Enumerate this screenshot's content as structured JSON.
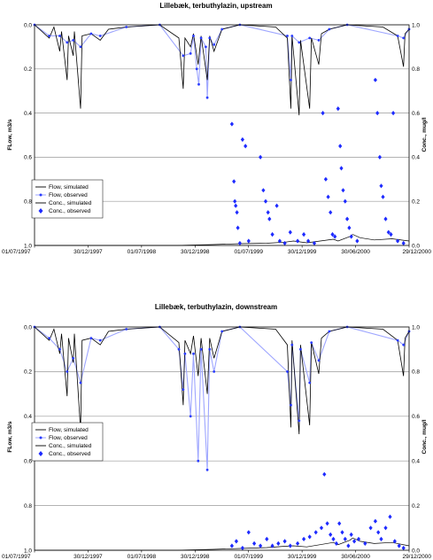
{
  "chart_data": [
    {
      "type": "line",
      "title": "Lillebæk, terbuthylazin, upstream",
      "ylabel_left": "FLow, m3/s",
      "ylabel_right": "Conc., mug/l",
      "left_axis": {
        "range": [
          0.0,
          1.0
        ],
        "inverted": true,
        "ticks": [
          "0.0",
          "0.2",
          "0.4",
          "0.6",
          "0.8",
          "1.0"
        ]
      },
      "right_axis": {
        "range": [
          0.0,
          1.0
        ],
        "ticks": [
          "1.0",
          "0.8",
          "0.6",
          "0.4",
          "0.2",
          "0.0"
        ]
      },
      "x_axis": {
        "start": "1997-07-01",
        "end": "2000-12-29",
        "tick_labels": [
          "01/07/1997",
          "30/12/1997",
          "01/07/1998",
          "30/12/1998",
          "01/07/1999",
          "30/12/1999",
          "30/06/2000",
          "29/12/2000"
        ]
      },
      "grid": "horizontal",
      "legend_position": "bottom-left",
      "legend": [
        "Flow, simulated",
        "Flow, observed",
        "Conc., simulated",
        "Conc., observed"
      ],
      "flow_simulated": [
        [
          "1997-07-01",
          0.0
        ],
        [
          "1997-08-20",
          0.06
        ],
        [
          "1997-09-05",
          0.01
        ],
        [
          "1997-09-25",
          0.12
        ],
        [
          "1997-10-01",
          0.03
        ],
        [
          "1997-10-20",
          0.25
        ],
        [
          "1997-10-25",
          0.05
        ],
        [
          "1997-11-10",
          0.14
        ],
        [
          "1997-11-14",
          0.03
        ],
        [
          "1997-12-05",
          0.38
        ],
        [
          "1997-12-10",
          0.05
        ],
        [
          "1998-01-10",
          0.04
        ],
        [
          "1998-02-10",
          0.07
        ],
        [
          "1998-03-10",
          0.02
        ],
        [
          "1998-05-10",
          0.01
        ],
        [
          "1998-09-01",
          0.0
        ],
        [
          "1998-11-05",
          0.06
        ],
        [
          "1998-11-20",
          0.29
        ],
        [
          "1998-11-26",
          0.06
        ],
        [
          "1998-12-15",
          0.1
        ],
        [
          "1998-12-25",
          0.04
        ],
        [
          "1999-01-10",
          0.18
        ],
        [
          "1999-01-20",
          0.05
        ],
        [
          "1999-02-10",
          0.25
        ],
        [
          "1999-02-18",
          0.05
        ],
        [
          "1999-03-05",
          0.12
        ],
        [
          "1999-04-01",
          0.02
        ],
        [
          "1999-06-01",
          0.0
        ],
        [
          "1999-10-01",
          0.01
        ],
        [
          "1999-11-10",
          0.06
        ],
        [
          "1999-11-22",
          0.38
        ],
        [
          "1999-11-26",
          0.05
        ],
        [
          "1999-12-20",
          0.41
        ],
        [
          "1999-12-25",
          0.07
        ],
        [
          "2000-01-25",
          0.38
        ],
        [
          "2000-01-31",
          0.06
        ],
        [
          "2000-02-25",
          0.18
        ],
        [
          "2000-03-05",
          0.04
        ],
        [
          "2000-04-01",
          0.02
        ],
        [
          "2000-06-01",
          0.0
        ],
        [
          "2000-10-01",
          0.01
        ],
        [
          "2000-11-20",
          0.05
        ],
        [
          "2000-12-10",
          0.19
        ],
        [
          "2000-12-15",
          0.04
        ],
        [
          "2000-12-29",
          0.02
        ]
      ],
      "flow_observed": [
        [
          "1997-07-01",
          0.0
        ],
        [
          "1997-08-20",
          0.05
        ],
        [
          "1997-09-25",
          0.05
        ],
        [
          "1997-10-20",
          0.08
        ],
        [
          "1997-11-10",
          0.07
        ],
        [
          "1997-12-05",
          0.1
        ],
        [
          "1998-01-10",
          0.04
        ],
        [
          "1998-02-10",
          0.05
        ],
        [
          "1998-05-10",
          0.01
        ],
        [
          "1998-09-01",
          0.0
        ],
        [
          "1998-11-20",
          0.14
        ],
        [
          "1998-12-15",
          0.13
        ],
        [
          "1998-12-25",
          0.05
        ],
        [
          "1999-01-05",
          0.2
        ],
        [
          "1999-01-12",
          0.27
        ],
        [
          "1999-01-20",
          0.06
        ],
        [
          "1999-02-05",
          0.1
        ],
        [
          "1999-02-10",
          0.33
        ],
        [
          "1999-02-18",
          0.06
        ],
        [
          "1999-03-05",
          0.09
        ],
        [
          "1999-04-01",
          0.02
        ],
        [
          "1999-06-01",
          0.0
        ],
        [
          "1999-11-10",
          0.05
        ],
        [
          "1999-11-22",
          0.25
        ],
        [
          "1999-11-26",
          0.05
        ],
        [
          "1999-12-20",
          0.08
        ],
        [
          "2000-01-25",
          0.06
        ],
        [
          "2000-02-25",
          0.07
        ],
        [
          "2000-04-01",
          0.02
        ],
        [
          "2000-06-01",
          0.0
        ],
        [
          "2000-11-20",
          0.05
        ],
        [
          "2000-12-10",
          0.06
        ],
        [
          "2000-12-29",
          0.02
        ]
      ],
      "conc_simulated": [
        [
          "1997-07-01",
          0.0
        ],
        [
          "1998-11-01",
          0.0
        ],
        [
          "1999-03-01",
          0.004
        ],
        [
          "1999-06-01",
          0.008
        ],
        [
          "1999-09-01",
          0.01
        ],
        [
          "1999-11-01",
          0.015
        ],
        [
          "1999-12-01",
          0.02
        ],
        [
          "2000-01-15",
          0.012
        ],
        [
          "2000-03-01",
          0.02
        ],
        [
          "2000-04-15",
          0.028
        ],
        [
          "2000-05-01",
          0.02
        ],
        [
          "2000-06-10",
          0.04
        ],
        [
          "2000-06-20",
          0.05
        ],
        [
          "2000-07-15",
          0.035
        ],
        [
          "2000-09-01",
          0.025
        ],
        [
          "2000-11-01",
          0.03
        ],
        [
          "2000-12-29",
          0.02
        ]
      ],
      "conc_observed": [
        [
          "1999-05-05",
          0.55
        ],
        [
          "1999-05-12",
          0.29
        ],
        [
          "1999-05-15",
          0.2
        ],
        [
          "1999-05-18",
          0.18
        ],
        [
          "1999-05-22",
          0.15
        ],
        [
          "1999-05-25",
          0.08
        ],
        [
          "1999-06-01",
          0.01
        ],
        [
          "1999-06-10",
          0.48
        ],
        [
          "1999-06-20",
          0.45
        ],
        [
          "1999-07-01",
          0.02
        ],
        [
          "1999-08-10",
          0.4
        ],
        [
          "1999-08-20",
          0.25
        ],
        [
          "1999-08-28",
          0.2
        ],
        [
          "1999-09-05",
          0.15
        ],
        [
          "1999-09-10",
          0.12
        ],
        [
          "1999-09-20",
          0.05
        ],
        [
          "1999-10-05",
          0.18
        ],
        [
          "1999-10-15",
          0.02
        ],
        [
          "1999-11-01",
          0.01
        ],
        [
          "1999-11-20",
          0.06
        ],
        [
          "1999-12-15",
          0.02
        ],
        [
          "2000-01-05",
          0.05
        ],
        [
          "2000-01-20",
          0.02
        ],
        [
          "2000-02-10",
          0.01
        ],
        [
          "2000-03-10",
          0.6
        ],
        [
          "2000-03-20",
          0.3
        ],
        [
          "2000-03-28",
          0.22
        ],
        [
          "2000-04-05",
          0.15
        ],
        [
          "2000-04-12",
          0.05
        ],
        [
          "2000-04-20",
          0.04
        ],
        [
          "2000-05-01",
          0.62
        ],
        [
          "2000-05-08",
          0.45
        ],
        [
          "2000-05-12",
          0.35
        ],
        [
          "2000-05-18",
          0.25
        ],
        [
          "2000-05-25",
          0.2
        ],
        [
          "2000-06-01",
          0.12
        ],
        [
          "2000-06-08",
          0.08
        ],
        [
          "2000-06-15",
          0.04
        ],
        [
          "2000-07-05",
          0.02
        ],
        [
          "2000-09-05",
          0.75
        ],
        [
          "2000-09-12",
          0.6
        ],
        [
          "2000-09-20",
          0.4
        ],
        [
          "2000-09-25",
          0.27
        ],
        [
          "2000-10-01",
          0.22
        ],
        [
          "2000-10-10",
          0.12
        ],
        [
          "2000-10-20",
          0.06
        ],
        [
          "2000-10-28",
          0.05
        ],
        [
          "2000-11-05",
          0.6
        ],
        [
          "2000-11-20",
          0.02
        ],
        [
          "2000-12-10",
          0.01
        ]
      ]
    },
    {
      "type": "line",
      "title": "Lillebæk, terbuthylazin, downstream",
      "ylabel_left": "FLow, m3/s",
      "ylabel_right": "Conc., mug/l",
      "left_axis": {
        "range": [
          0.0,
          1.0
        ],
        "inverted": true,
        "ticks": [
          "0.0",
          "0.2",
          "0.4",
          "0.6",
          "0.8",
          "1.0"
        ]
      },
      "right_axis": {
        "range": [
          0.0,
          1.0
        ],
        "ticks": [
          "1.0",
          "0.8",
          "0.6",
          "0.4",
          "0.2",
          "0.0"
        ]
      },
      "x_axis": {
        "start": "1997-07-01",
        "end": "2000-12-29",
        "tick_labels": [
          "01/07/1997",
          "30/12/1997",
          "01/07/1998",
          "30/12/1998",
          "01/07/1999",
          "30/12/1999",
          "30/06/2000",
          "29/12/2000"
        ]
      },
      "grid": "horizontal",
      "legend_position": "bottom-left",
      "legend": [
        "Flow, simulated",
        "Flow, observed",
        "Conc., simulated",
        "Conc., observed"
      ],
      "flow_simulated": [
        [
          "1997-07-01",
          0.0
        ],
        [
          "1997-08-20",
          0.06
        ],
        [
          "1997-09-05",
          0.01
        ],
        [
          "1997-09-25",
          0.12
        ],
        [
          "1997-10-01",
          0.03
        ],
        [
          "1997-10-20",
          0.31
        ],
        [
          "1997-10-25",
          0.05
        ],
        [
          "1997-11-10",
          0.16
        ],
        [
          "1997-11-14",
          0.03
        ],
        [
          "1997-12-05",
          0.46
        ],
        [
          "1997-12-10",
          0.06
        ],
        [
          "1998-01-10",
          0.05
        ],
        [
          "1998-02-10",
          0.08
        ],
        [
          "1998-03-10",
          0.02
        ],
        [
          "1998-05-10",
          0.01
        ],
        [
          "1998-09-01",
          0.0
        ],
        [
          "1998-11-05",
          0.07
        ],
        [
          "1998-11-20",
          0.35
        ],
        [
          "1998-11-26",
          0.06
        ],
        [
          "1998-12-15",
          0.12
        ],
        [
          "1998-12-25",
          0.04
        ],
        [
          "1999-01-10",
          0.22
        ],
        [
          "1999-01-20",
          0.05
        ],
        [
          "1999-02-10",
          0.3
        ],
        [
          "1999-02-18",
          0.05
        ],
        [
          "1999-03-05",
          0.14
        ],
        [
          "1999-04-01",
          0.02
        ],
        [
          "1999-06-01",
          0.0
        ],
        [
          "1999-10-01",
          0.01
        ],
        [
          "1999-11-10",
          0.08
        ],
        [
          "1999-11-22",
          0.45
        ],
        [
          "1999-11-26",
          0.06
        ],
        [
          "1999-12-20",
          0.48
        ],
        [
          "1999-12-25",
          0.08
        ],
        [
          "2000-01-25",
          0.44
        ],
        [
          "2000-01-31",
          0.07
        ],
        [
          "2000-02-25",
          0.21
        ],
        [
          "2000-03-05",
          0.05
        ],
        [
          "2000-04-01",
          0.02
        ],
        [
          "2000-06-01",
          0.0
        ],
        [
          "2000-10-01",
          0.01
        ],
        [
          "2000-11-20",
          0.06
        ],
        [
          "2000-12-10",
          0.22
        ],
        [
          "2000-12-15",
          0.05
        ],
        [
          "2000-12-29",
          0.02
        ]
      ],
      "flow_observed": [
        [
          "1997-07-01",
          0.0
        ],
        [
          "1997-08-20",
          0.05
        ],
        [
          "1997-09-25",
          0.1
        ],
        [
          "1997-10-20",
          0.2
        ],
        [
          "1997-11-10",
          0.14
        ],
        [
          "1997-12-05",
          0.25
        ],
        [
          "1998-01-10",
          0.05
        ],
        [
          "1998-02-10",
          0.06
        ],
        [
          "1998-05-10",
          0.01
        ],
        [
          "1998-09-01",
          0.0
        ],
        [
          "1998-11-05",
          0.1
        ],
        [
          "1998-11-20",
          0.28
        ],
        [
          "1998-11-26",
          0.12
        ],
        [
          "1998-12-15",
          0.4
        ],
        [
          "1998-12-25",
          0.12
        ],
        [
          "1999-01-10",
          0.6
        ],
        [
          "1999-01-20",
          0.1
        ],
        [
          "1999-02-10",
          0.64
        ],
        [
          "1999-02-18",
          0.1
        ],
        [
          "1999-03-05",
          0.2
        ],
        [
          "1999-04-01",
          0.02
        ],
        [
          "1999-06-01",
          0.0
        ],
        [
          "1999-11-10",
          0.2
        ],
        [
          "1999-11-22",
          0.35
        ],
        [
          "1999-11-26",
          0.08
        ],
        [
          "1999-12-20",
          0.42
        ],
        [
          "1999-12-25",
          0.1
        ],
        [
          "2000-01-25",
          0.25
        ],
        [
          "2000-01-31",
          0.07
        ],
        [
          "2000-02-25",
          0.15
        ],
        [
          "2000-04-01",
          0.02
        ],
        [
          "2000-06-01",
          0.0
        ],
        [
          "2000-11-20",
          0.06
        ],
        [
          "2000-12-10",
          0.08
        ],
        [
          "2000-12-29",
          0.02
        ]
      ],
      "conc_simulated": [
        [
          "1997-07-01",
          0.0
        ],
        [
          "1998-11-01",
          0.0
        ],
        [
          "1999-03-01",
          0.004
        ],
        [
          "1999-06-01",
          0.008
        ],
        [
          "1999-09-01",
          0.012
        ],
        [
          "1999-11-01",
          0.018
        ],
        [
          "1999-12-01",
          0.02
        ],
        [
          "2000-01-15",
          0.015
        ],
        [
          "2000-03-01",
          0.025
        ],
        [
          "2000-04-15",
          0.035
        ],
        [
          "2000-05-01",
          0.025
        ],
        [
          "2000-06-10",
          0.045
        ],
        [
          "2000-06-20",
          0.055
        ],
        [
          "2000-07-15",
          0.04
        ],
        [
          "2000-09-01",
          0.03
        ],
        [
          "2000-11-01",
          0.035
        ],
        [
          "2000-12-29",
          0.02
        ]
      ],
      "conc_observed": [
        [
          "1999-05-05",
          0.02
        ],
        [
          "1999-05-20",
          0.04
        ],
        [
          "1999-06-10",
          0.01
        ],
        [
          "1999-07-01",
          0.08
        ],
        [
          "1999-07-20",
          0.03
        ],
        [
          "1999-08-10",
          0.02
        ],
        [
          "1999-09-01",
          0.05
        ],
        [
          "1999-09-20",
          0.02
        ],
        [
          "1999-10-10",
          0.03
        ],
        [
          "1999-11-01",
          0.04
        ],
        [
          "1999-11-20",
          0.02
        ],
        [
          "1999-12-15",
          0.03
        ],
        [
          "2000-01-05",
          0.05
        ],
        [
          "2000-01-25",
          0.06
        ],
        [
          "2000-02-15",
          0.08
        ],
        [
          "2000-03-05",
          0.1
        ],
        [
          "2000-03-15",
          0.34
        ],
        [
          "2000-03-25",
          0.12
        ],
        [
          "2000-04-05",
          0.07
        ],
        [
          "2000-04-15",
          0.05
        ],
        [
          "2000-04-25",
          0.03
        ],
        [
          "2000-05-05",
          0.12
        ],
        [
          "2000-05-15",
          0.08
        ],
        [
          "2000-05-25",
          0.05
        ],
        [
          "2000-06-05",
          0.02
        ],
        [
          "2000-06-15",
          0.07
        ],
        [
          "2000-06-25",
          0.04
        ],
        [
          "2000-07-10",
          0.05
        ],
        [
          "2000-08-01",
          0.03
        ],
        [
          "2000-08-20",
          0.1
        ],
        [
          "2000-09-05",
          0.13
        ],
        [
          "2000-09-15",
          0.08
        ],
        [
          "2000-09-25",
          0.05
        ],
        [
          "2000-10-10",
          0.1
        ],
        [
          "2000-10-25",
          0.15
        ],
        [
          "2000-11-10",
          0.04
        ],
        [
          "2000-11-25",
          0.02
        ],
        [
          "2000-12-10",
          0.01
        ]
      ]
    }
  ]
}
